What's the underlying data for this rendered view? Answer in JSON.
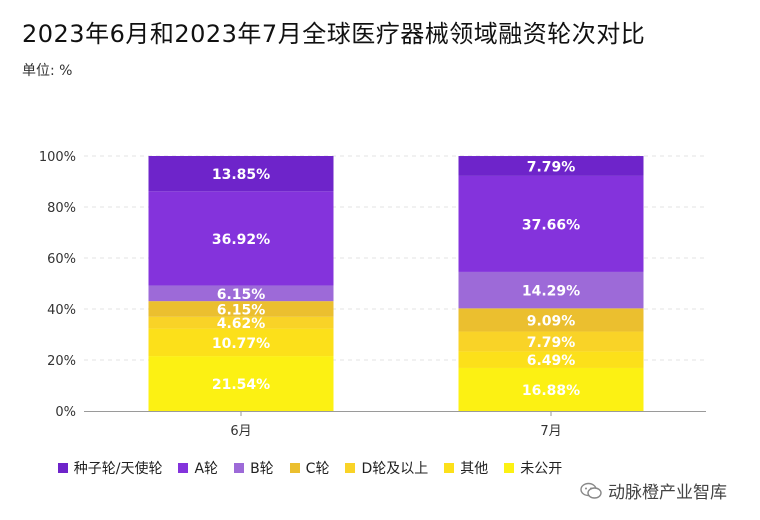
{
  "header": {
    "title": "2023年6月和2023年7月全球医疗器械领域融资轮次对比",
    "unit": "单位: %"
  },
  "chart_data": {
    "type": "bar",
    "stacked": true,
    "title": "2023年6月和2023年7月全球医疗器械领域融资轮次对比",
    "ylabel": "单位: %",
    "ylim": [
      0,
      100
    ],
    "yticks": [
      "0%",
      "20%",
      "40%",
      "60%",
      "80%",
      "100%"
    ],
    "categories": [
      "6月",
      "7月"
    ],
    "series": [
      {
        "name": "未公开",
        "color": "#fcf113",
        "values": [
          21.54,
          16.88
        ],
        "labels": [
          "21.54%",
          "16.88%"
        ]
      },
      {
        "name": "其他",
        "color": "#fce01a",
        "values": [
          10.77,
          6.49
        ],
        "labels": [
          "10.77%",
          "6.49%"
        ]
      },
      {
        "name": "D轮及以上",
        "color": "#f9d327",
        "values": [
          4.62,
          7.79
        ],
        "labels": [
          "4.62%",
          "7.79%"
        ]
      },
      {
        "name": "C轮",
        "color": "#ebbf2f",
        "values": [
          6.15,
          9.09
        ],
        "labels": [
          "6.15%",
          "9.09%"
        ]
      },
      {
        "name": "B轮",
        "color": "#9d6ad8",
        "values": [
          6.15,
          14.29
        ],
        "labels": [
          "6.15%",
          "14.29%"
        ]
      },
      {
        "name": "A轮",
        "color": "#8433dc",
        "values": [
          36.92,
          37.66
        ],
        "labels": [
          "36.92%",
          "37.66%"
        ]
      },
      {
        "name": "种子轮/天使轮",
        "color": "#6e24ca",
        "values": [
          13.85,
          7.79
        ],
        "labels": [
          "13.85%",
          "7.79%"
        ]
      }
    ],
    "legend_order": [
      "种子轮/天使轮",
      "A轮",
      "B轮",
      "C轮",
      "D轮及以上",
      "其他",
      "未公开"
    ],
    "legend_position": "bottom"
  },
  "watermark": {
    "text": "动脉橙产业智库"
  }
}
